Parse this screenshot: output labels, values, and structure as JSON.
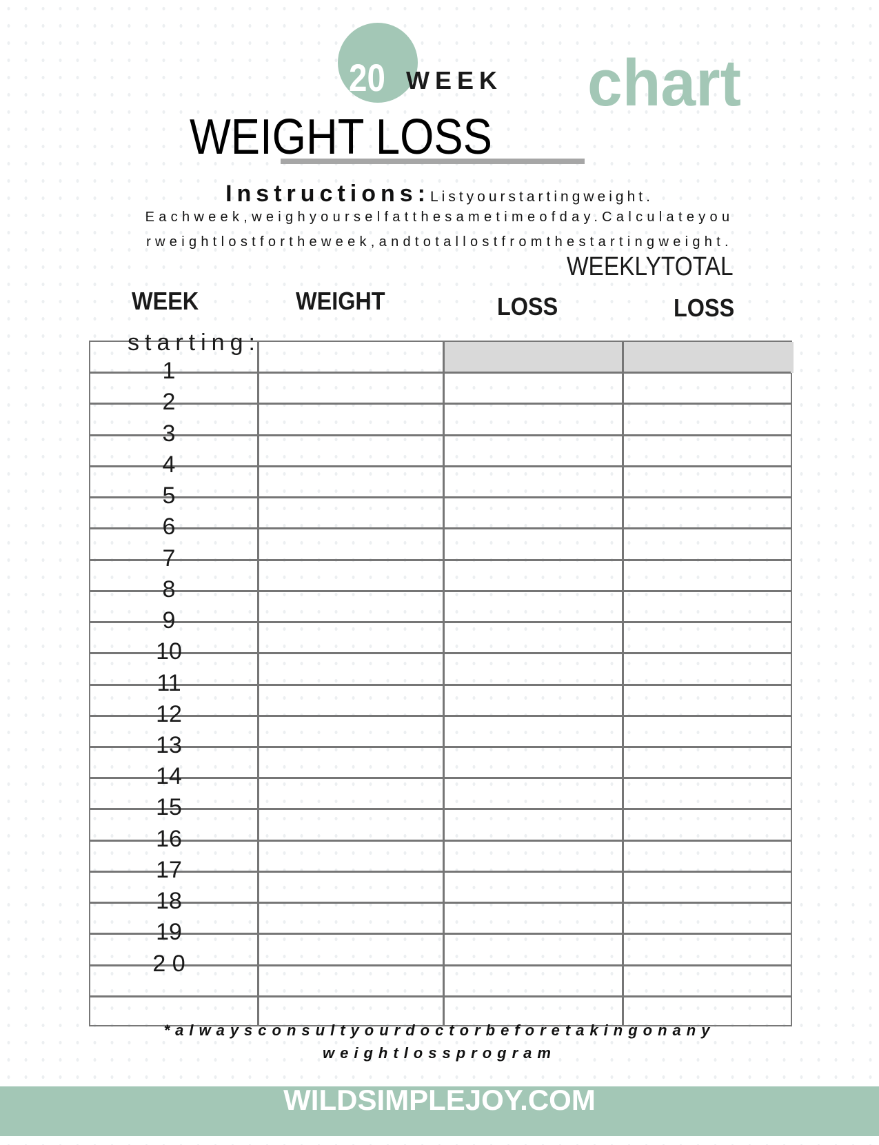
{
  "header": {
    "number": "20",
    "week": "WEEK",
    "chart": "chart",
    "title": "WEIGHT LOSS",
    "accent_color": "#a3c7b6"
  },
  "instructions": {
    "label": "Instructions:",
    "line1": "Listyourstartingweight.",
    "line2": "Eachweek,weighyourselfatthesametimeofday.Calculateyou",
    "line3": "rweightlostfortheweek,andtotallostfromthestartingweight."
  },
  "columns": {
    "weekly_total": "WEEKLYTOTAL",
    "week": "WEEK",
    "weight": "WEIGHT",
    "weekly_loss": "LOSS",
    "total_loss": "LOSS"
  },
  "table": {
    "starting_label": "starting:",
    "weeks": [
      "1",
      "2",
      "3",
      "4",
      "5",
      "6",
      "7",
      "8",
      "9",
      "10",
      "11",
      "12",
      "13",
      "14",
      "15",
      "16",
      "17",
      "18",
      "19",
      "2 0"
    ]
  },
  "disclaimer": {
    "line1": "*alwaysconsultyourdoctorbeforetakingonany",
    "line2": "weightlossprogram"
  },
  "footer": {
    "site": "WILDSIMPLEJOY.COM"
  }
}
